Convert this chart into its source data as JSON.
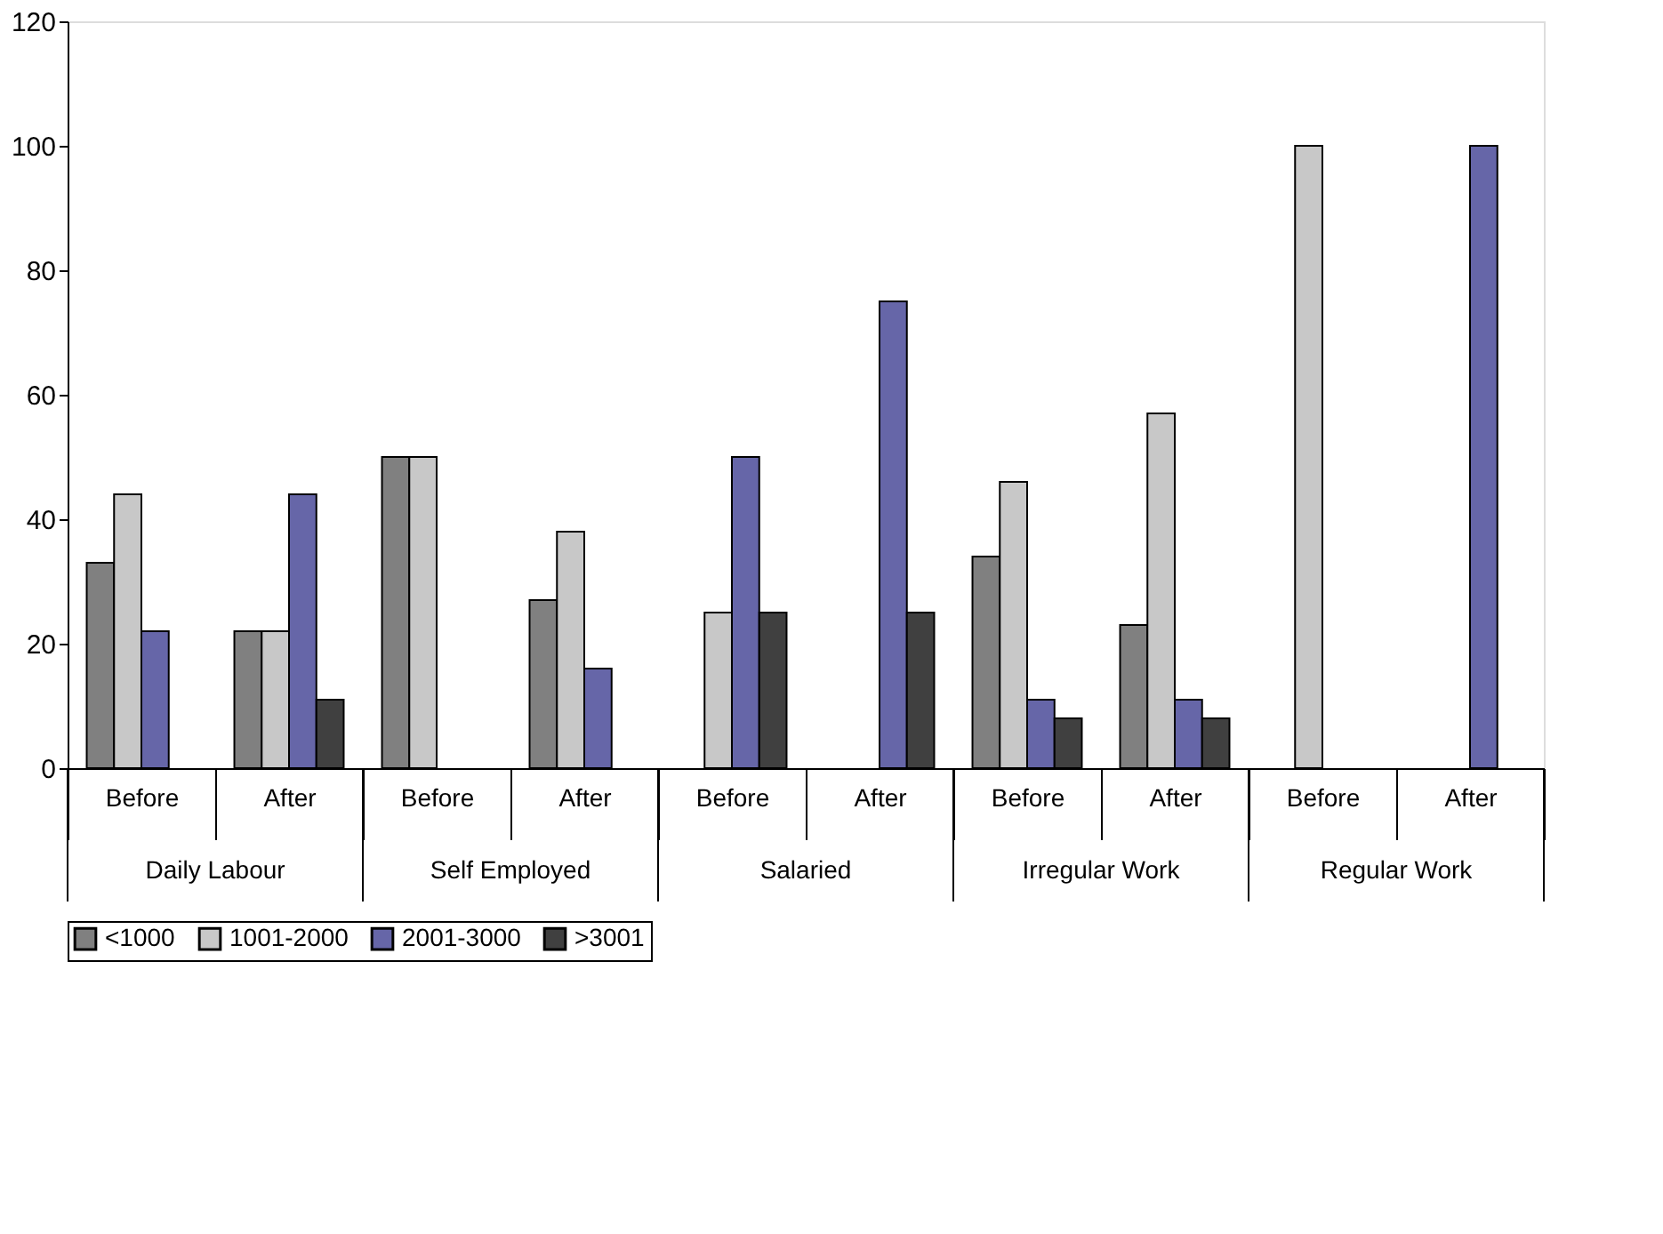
{
  "chart_data": {
    "type": "bar",
    "categories": [
      "Before",
      "After",
      "Before",
      "After",
      "Before",
      "After",
      "Before",
      "After",
      "Before",
      "After"
    ],
    "annotations": [
      "Daily Labour",
      "Self Employed",
      "Salaried",
      "Irregular Work",
      "Regular Work"
    ],
    "series": [
      {
        "name": "<1000",
        "color": "#808080",
        "values": [
          33,
          22,
          50,
          27,
          null,
          null,
          34,
          23,
          null,
          null
        ]
      },
      {
        "name": "1001-2000",
        "color": "#c8c8c8",
        "values": [
          44,
          22,
          50,
          38,
          25,
          null,
          46,
          57,
          100,
          null
        ]
      },
      {
        "name": "2001-3000",
        "color": "#6666a8",
        "values": [
          22,
          44,
          null,
          16,
          50,
          75,
          11,
          11,
          null,
          100
        ]
      },
      {
        "name": ">3001",
        "color": "#404040",
        "values": [
          null,
          11,
          null,
          null,
          25,
          25,
          8,
          8,
          null,
          null
        ]
      }
    ],
    "ylim": [
      0,
      120
    ],
    "yticks": [
      0,
      20,
      40,
      60,
      80,
      100,
      120
    ],
    "grid": false,
    "legend": "bottom"
  }
}
